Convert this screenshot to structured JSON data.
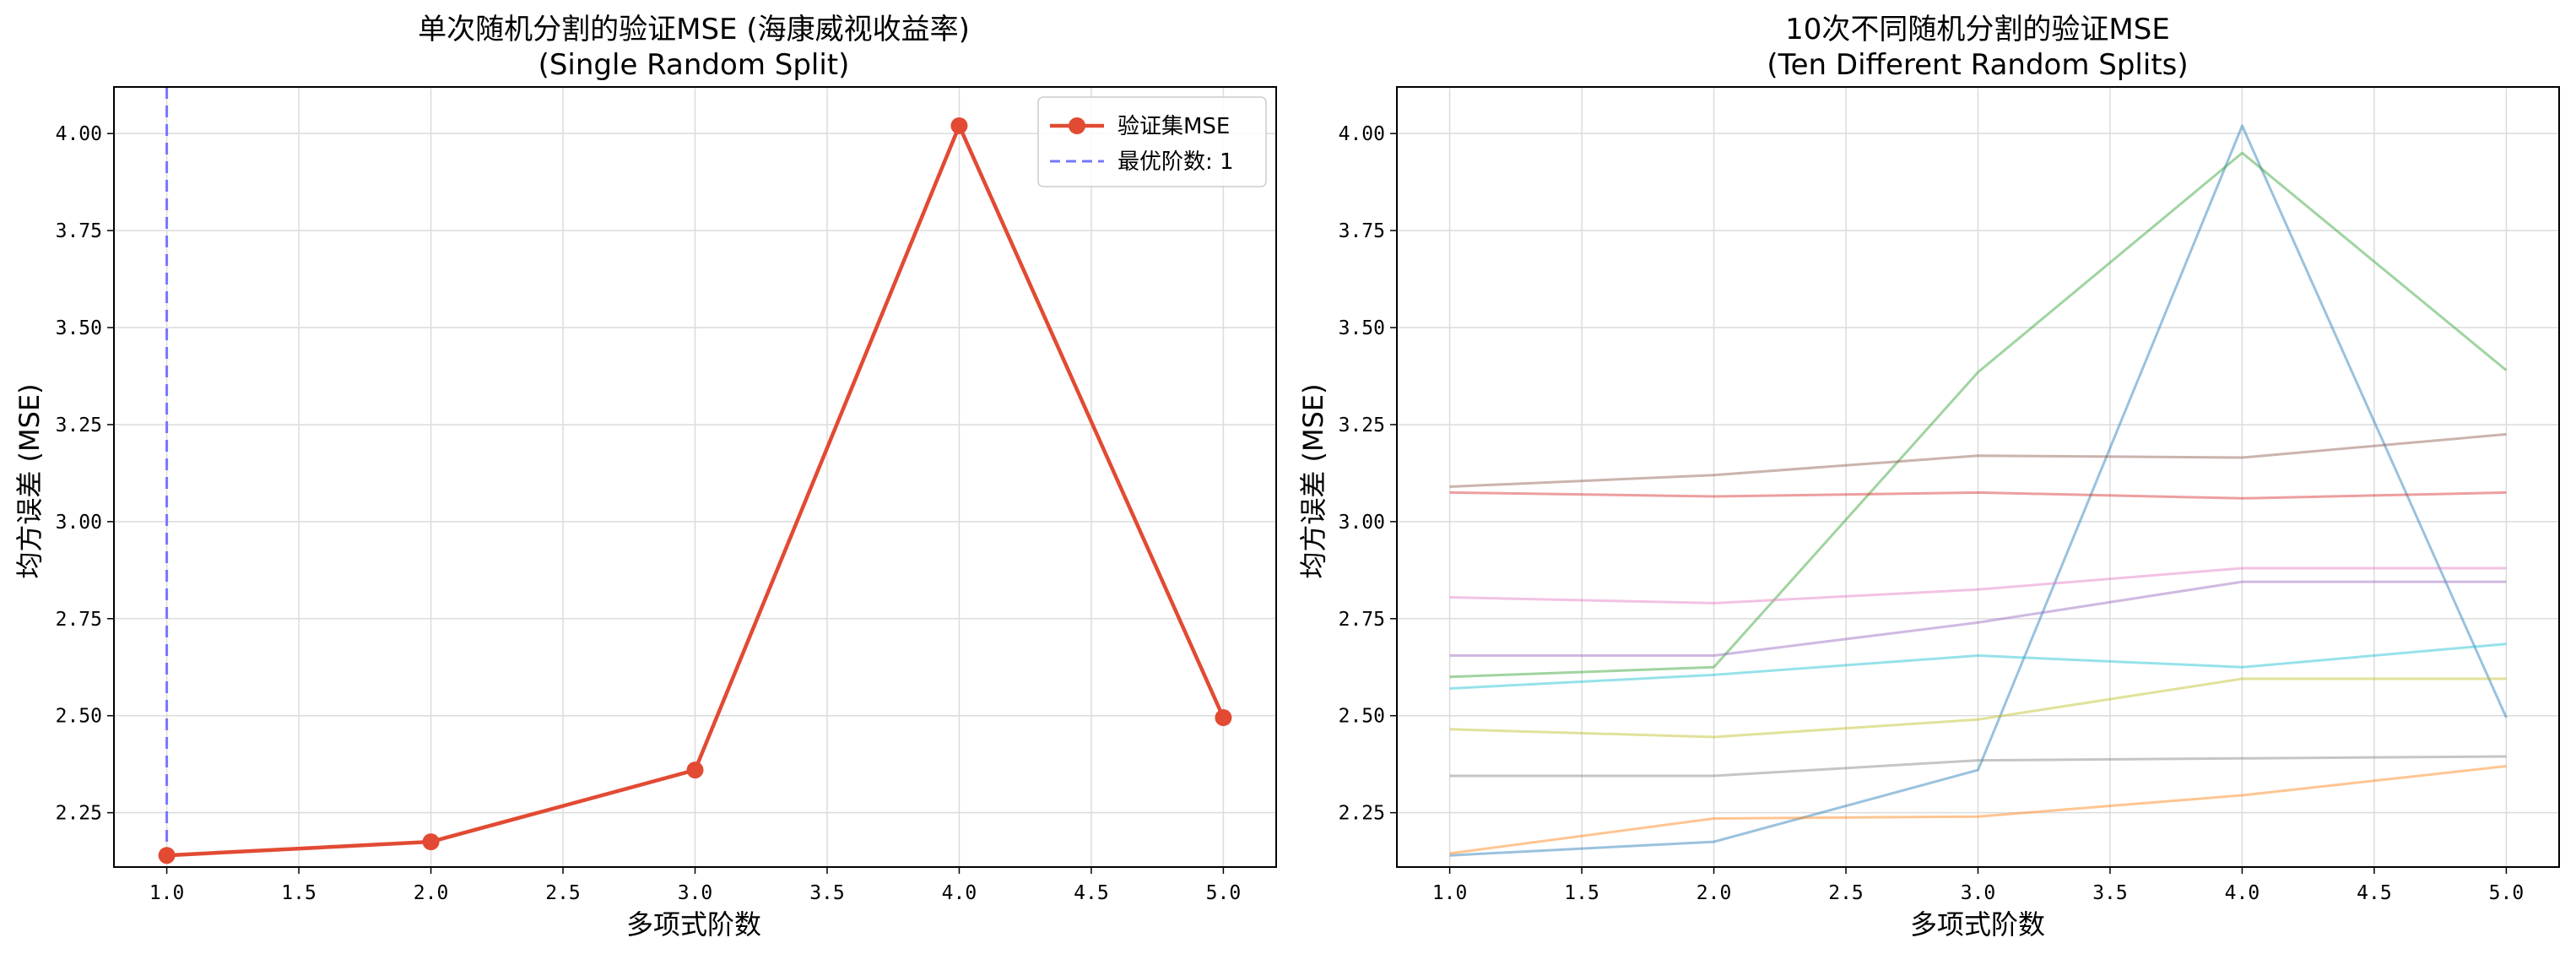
{
  "chart_data": [
    {
      "type": "line",
      "title": "单次随机分割的验证MSE (海康威视收益率)",
      "subtitle": "(Single Random Split)",
      "xlabel": "多项式阶数",
      "ylabel": "均方误差 (MSE)",
      "xlim": [
        0.8,
        5.2
      ],
      "ylim": [
        2.11,
        4.12
      ],
      "xticks": [
        "1.0",
        "1.5",
        "2.0",
        "2.5",
        "3.0",
        "3.5",
        "4.0",
        "4.5",
        "5.0"
      ],
      "yticks": [
        "2.25",
        "2.50",
        "2.75",
        "3.00",
        "3.25",
        "3.50",
        "3.75",
        "4.00"
      ],
      "grid": true,
      "legend_position": "top-right",
      "series": [
        {
          "name": "验证集MSE",
          "color": "#e24a33",
          "marker": "circle",
          "x": [
            1,
            2,
            3,
            4,
            5
          ],
          "values": [
            2.14,
            2.175,
            2.36,
            4.02,
            2.495
          ]
        }
      ],
      "vline": {
        "label": "最优阶数: 1",
        "x": 1,
        "color": "#7777ff",
        "style": "dashed"
      }
    },
    {
      "type": "line",
      "title": "10次不同随机分割的验证MSE",
      "subtitle": "(Ten Different Random Splits)",
      "xlabel": "多项式阶数",
      "ylabel": "均方误差 (MSE)",
      "xlim": [
        0.8,
        5.2
      ],
      "ylim": [
        2.11,
        4.12
      ],
      "xticks": [
        "1.0",
        "1.5",
        "2.0",
        "2.5",
        "3.0",
        "3.5",
        "4.0",
        "4.5",
        "5.0"
      ],
      "yticks": [
        "2.25",
        "2.50",
        "2.75",
        "3.00",
        "3.25",
        "3.50",
        "3.75",
        "4.00"
      ],
      "grid": true,
      "series": [
        {
          "color": "#1f77b4",
          "x": [
            1,
            2,
            3,
            4,
            5
          ],
          "values": [
            2.14,
            2.175,
            2.36,
            4.02,
            2.495
          ]
        },
        {
          "color": "#ff7f0e",
          "x": [
            1,
            2,
            3,
            4,
            5
          ],
          "values": [
            2.145,
            2.235,
            2.24,
            2.295,
            2.37
          ]
        },
        {
          "color": "#2ca02c",
          "x": [
            1,
            2,
            3,
            4,
            5
          ],
          "values": [
            2.6,
            2.625,
            3.385,
            3.95,
            3.39
          ]
        },
        {
          "color": "#d62728",
          "x": [
            1,
            2,
            3,
            4,
            5
          ],
          "values": [
            3.075,
            3.065,
            3.075,
            3.06,
            3.075
          ]
        },
        {
          "color": "#9467bd",
          "x": [
            1,
            2,
            3,
            4,
            5
          ],
          "values": [
            2.655,
            2.655,
            2.74,
            2.845,
            2.845
          ]
        },
        {
          "color": "#8c564b",
          "x": [
            1,
            2,
            3,
            4,
            5
          ],
          "values": [
            3.09,
            3.12,
            3.17,
            3.165,
            3.225
          ]
        },
        {
          "color": "#e377c2",
          "x": [
            1,
            2,
            3,
            4,
            5
          ],
          "values": [
            2.805,
            2.79,
            2.825,
            2.88,
            2.88
          ]
        },
        {
          "color": "#7f7f7f",
          "x": [
            1,
            2,
            3,
            4,
            5
          ],
          "values": [
            2.345,
            2.345,
            2.385,
            2.39,
            2.395
          ]
        },
        {
          "color": "#bcbd22",
          "x": [
            1,
            2,
            3,
            4,
            5
          ],
          "values": [
            2.465,
            2.445,
            2.49,
            2.595,
            2.595
          ]
        },
        {
          "color": "#17becf",
          "x": [
            1,
            2,
            3,
            4,
            5
          ],
          "values": [
            2.57,
            2.605,
            2.655,
            2.625,
            2.685
          ]
        }
      ]
    }
  ]
}
